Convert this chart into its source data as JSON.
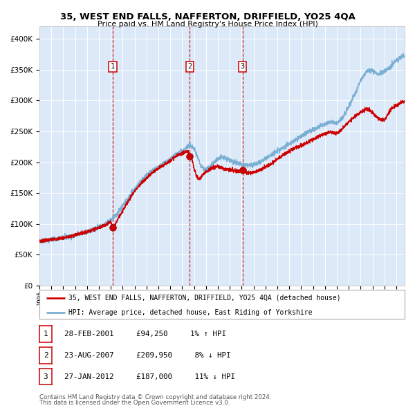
{
  "title": "35, WEST END FALLS, NAFFERTON, DRIFFIELD, YO25 4QA",
  "subtitle": "Price paid vs. HM Land Registry's House Price Index (HPI)",
  "legend_label_red": "35, WEST END FALLS, NAFFERTON, DRIFFIELD, YO25 4QA (detached house)",
  "legend_label_blue": "HPI: Average price, detached house, East Riding of Yorkshire",
  "footer1": "Contains HM Land Registry data © Crown copyright and database right 2024.",
  "footer2": "This data is licensed under the Open Government Licence v3.0.",
  "transactions": [
    {
      "num": 1,
      "date": "28-FEB-2001",
      "price": 94250,
      "pct": "1%",
      "dir": "↑"
    },
    {
      "num": 2,
      "date": "23-AUG-2007",
      "price": 209950,
      "pct": "8%",
      "dir": "↓"
    },
    {
      "num": 3,
      "date": "27-JAN-2012",
      "price": 187000,
      "pct": "11%",
      "dir": "↓"
    }
  ],
  "transaction_dates_decimal": [
    2001.16,
    2007.64,
    2012.08
  ],
  "transaction_prices": [
    94250,
    209950,
    187000
  ],
  "plot_bg_color": "#dce9f8",
  "red_color": "#cc0000",
  "blue_color": "#7bafd4",
  "ylim": [
    0,
    420000
  ],
  "yticks": [
    0,
    50000,
    100000,
    150000,
    200000,
    250000,
    300000,
    350000,
    400000
  ],
  "xstart": 1995.0,
  "xend": 2025.7
}
